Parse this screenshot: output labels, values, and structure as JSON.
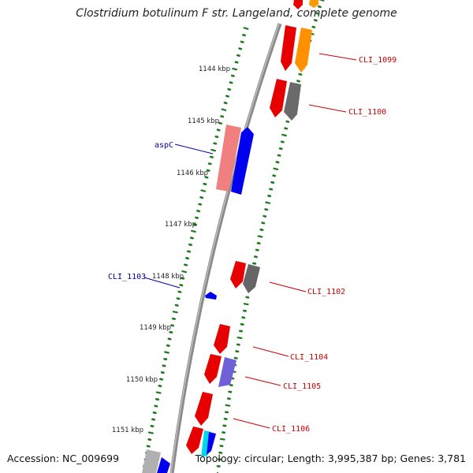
{
  "title": "Clostridium botulinum F str. Langeland, complete genome",
  "accession": "Accession: NC_009699",
  "topology": "Topology: circular; Length: 3,995,387 bp; Genes: 3,781",
  "colors": {
    "backbone": "#8a8a8a",
    "ticks": "#1e7a1e",
    "label_outer": "#cc0000",
    "label_inner": "#0000aa"
  },
  "kbp_labels": [
    "1144 kbp",
    "1145 kbp",
    "1146 kbp",
    "1147 kbp",
    "1148 kbp",
    "1149 kbp",
    "1150 kbp",
    "1151 kbp"
  ],
  "gene_labels": [
    {
      "text": "CLI_1099",
      "side": "outer"
    },
    {
      "text": "CLI_1100",
      "side": "outer"
    },
    {
      "text": "aspC",
      "side": "inner"
    },
    {
      "text": "CLI_1103",
      "side": "inner"
    },
    {
      "text": "CLI_1102",
      "side": "outer"
    },
    {
      "text": "CLI_1104",
      "side": "outer"
    },
    {
      "text": "CLI_1105",
      "side": "outer"
    },
    {
      "text": "CLI_1106",
      "side": "outer"
    }
  ]
}
